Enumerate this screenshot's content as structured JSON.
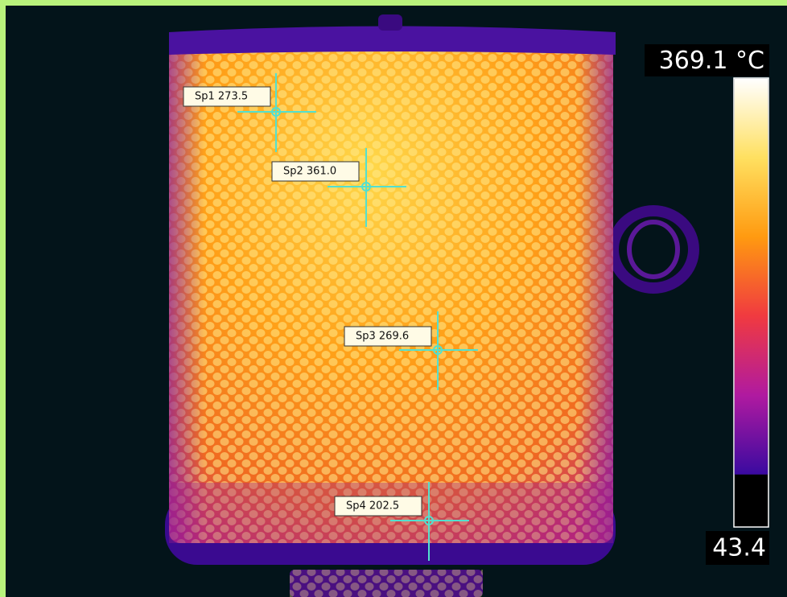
{
  "spots": [
    {
      "label": "Sp1 273.5"
    },
    {
      "label": "Sp2 361.0"
    },
    {
      "label": "Sp3 269.6"
    },
    {
      "label": "Sp4 202.5"
    }
  ],
  "scale": {
    "max": 369.1,
    "unit": "°C",
    "min": 43.4
  }
}
